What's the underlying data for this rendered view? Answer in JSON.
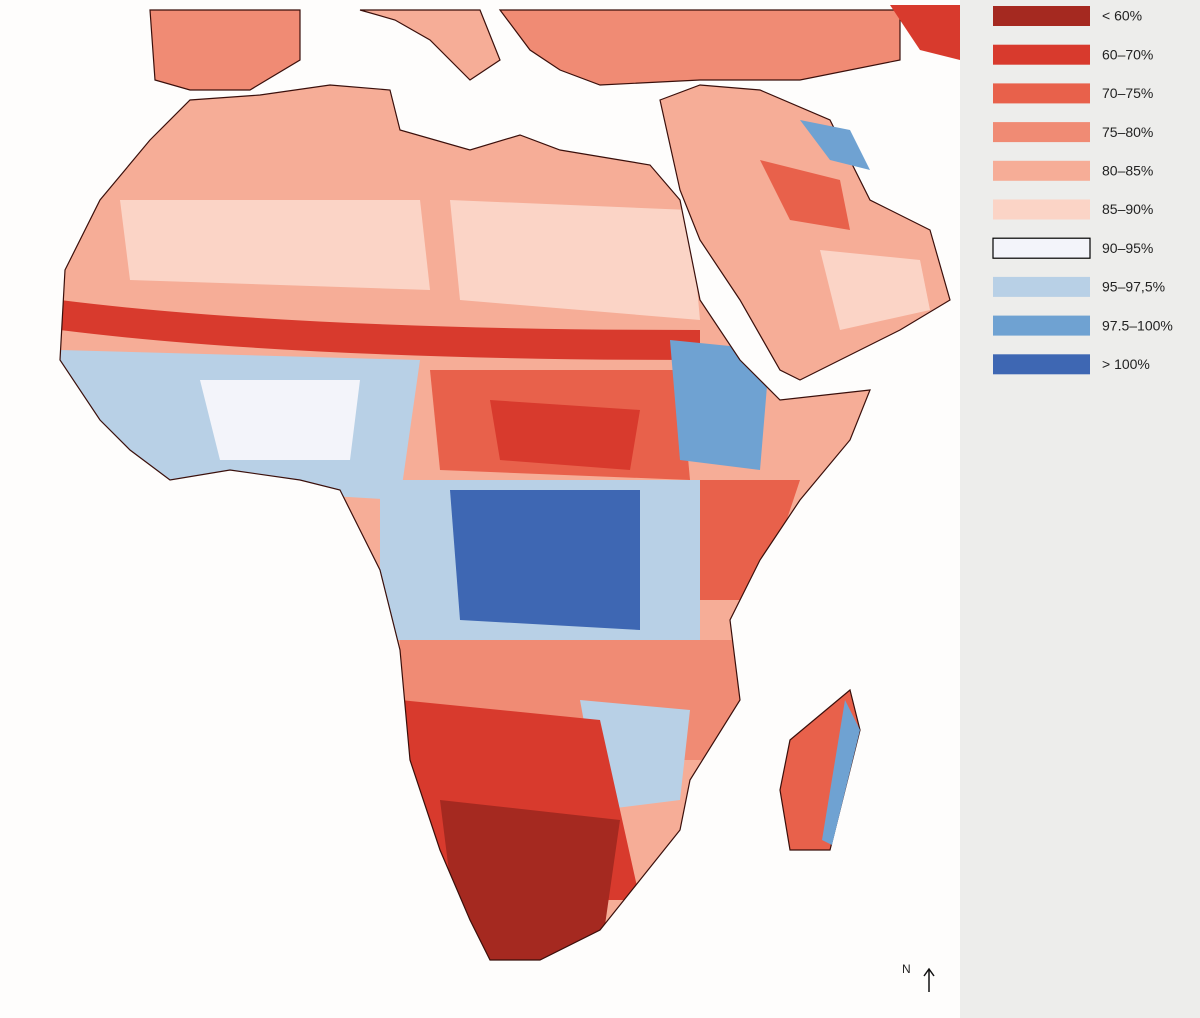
{
  "legend": {
    "items": [
      {
        "label": "< 60%",
        "color": "#a52920"
      },
      {
        "label": "60–70%",
        "color": "#d83a2d"
      },
      {
        "label": "70–75%",
        "color": "#e8614b"
      },
      {
        "label": "75–80%",
        "color": "#f08b74"
      },
      {
        "label": "80–85%",
        "color": "#f6ad97"
      },
      {
        "label": "85–90%",
        "color": "#fbd4c6"
      },
      {
        "label": "90–95%",
        "color": "#f3f4fa",
        "border": "#000000"
      },
      {
        "label": "95–97,5%",
        "color": "#b8d0e6"
      },
      {
        "label": "97.5–100%",
        "color": "#6fa2d2"
      },
      {
        "label": "> 100%",
        "color": "#3e67b3"
      }
    ]
  },
  "north_label": "N"
}
